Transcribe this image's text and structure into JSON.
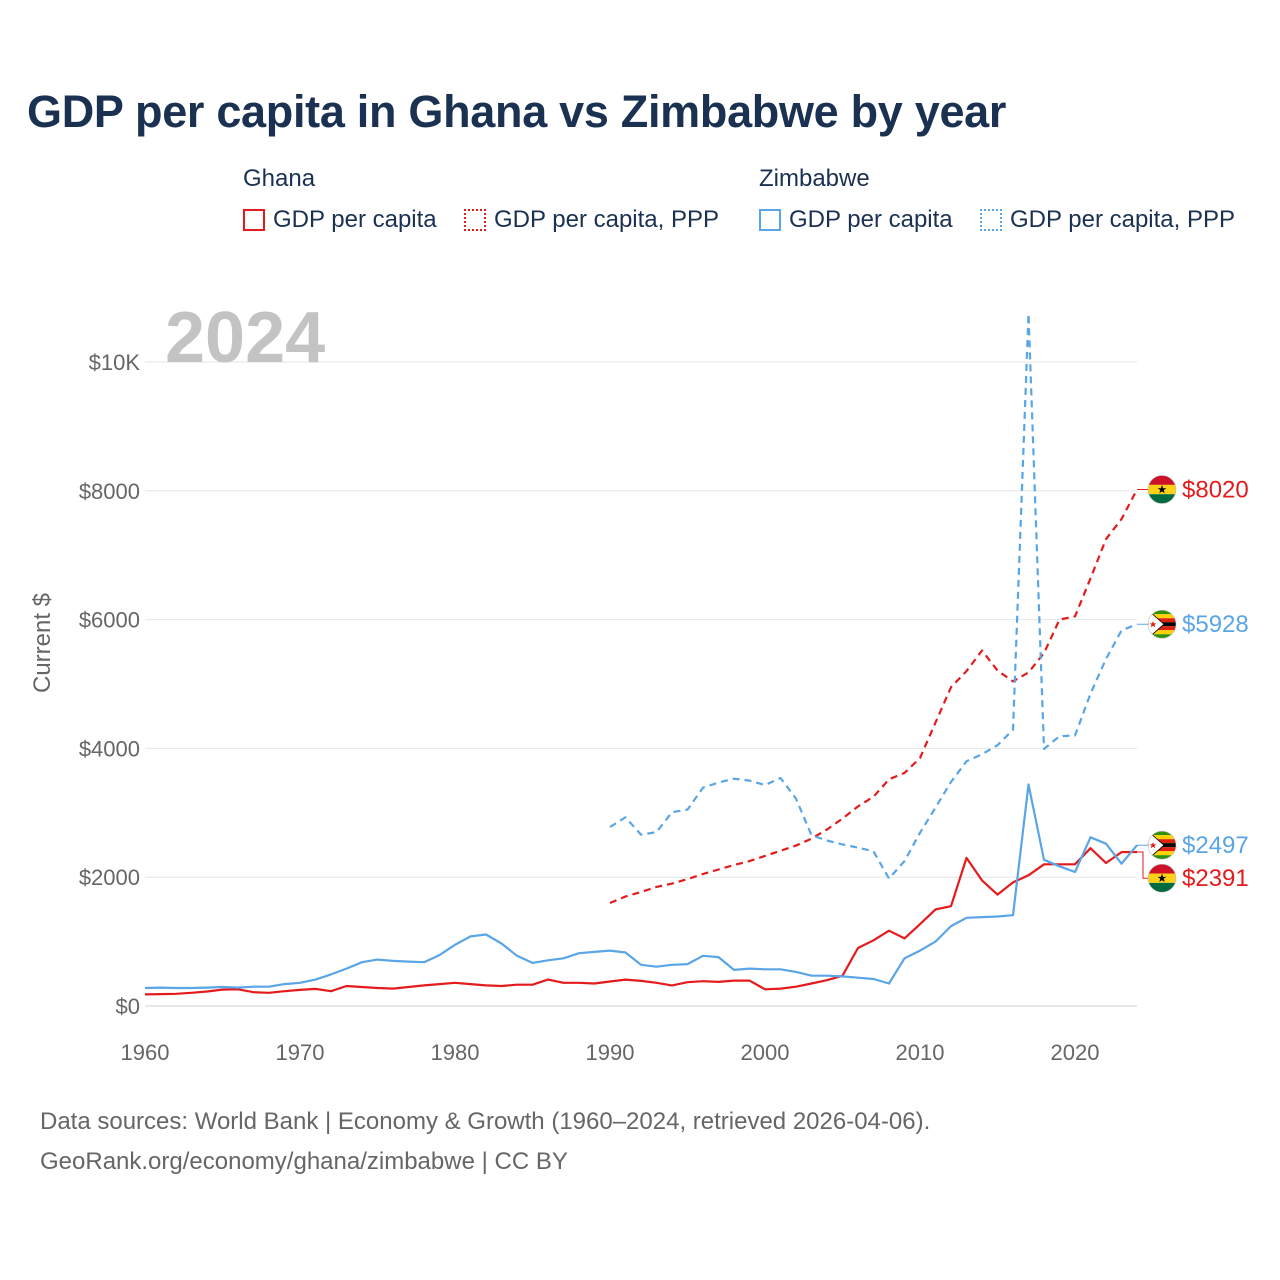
{
  "title": "GDP per capita in Ghana vs Zimbabwe by year",
  "legend": {
    "ghana": {
      "name": "Ghana",
      "gdp": "GDP per capita",
      "ppp": "GDP per capita, PPP"
    },
    "zimbabwe": {
      "name": "Zimbabwe",
      "gdp": "GDP per capita",
      "ppp": "GDP per capita, PPP"
    }
  },
  "footer": {
    "line1": "Data sources: World Bank | Economy & Growth (1960–2024, retrieved 2026-04-06).",
    "line2": "GeoRank.org/economy/ghana/zimbabwe | CC BY"
  },
  "colors": {
    "ghana": "#e41a1c",
    "zimbabwe": "#5aa5e6"
  },
  "chart_data": {
    "type": "line",
    "title": "GDP per capita in Ghana vs Zimbabwe by year",
    "year_label": "2024",
    "xlabel": "",
    "ylabel": "Current $",
    "xlim": [
      1960,
      2024
    ],
    "ylim": [
      0,
      11000
    ],
    "x_ticks": [
      1960,
      1970,
      1980,
      1990,
      2000,
      2010,
      2020
    ],
    "y_ticks": [
      {
        "value": 0,
        "label": "$0"
      },
      {
        "value": 2000,
        "label": "$2000"
      },
      {
        "value": 4000,
        "label": "$4000"
      },
      {
        "value": 6000,
        "label": "$6000"
      },
      {
        "value": 8000,
        "label": "$8000"
      },
      {
        "value": 10000,
        "label": "$10K"
      }
    ],
    "grid": true,
    "series": [
      {
        "name": "Ghana GDP per capita",
        "country": "ghana",
        "style": "solid",
        "end_label": "$2391",
        "end_value": 2391,
        "x": [
          1960,
          1961,
          1962,
          1963,
          1964,
          1965,
          1966,
          1967,
          1968,
          1969,
          1970,
          1971,
          1972,
          1973,
          1974,
          1975,
          1976,
          1977,
          1978,
          1979,
          1980,
          1981,
          1982,
          1983,
          1984,
          1985,
          1986,
          1987,
          1988,
          1989,
          1990,
          1991,
          1992,
          1993,
          1994,
          1995,
          1996,
          1997,
          1998,
          1999,
          2000,
          2001,
          2002,
          2003,
          2004,
          2005,
          2006,
          2007,
          2008,
          2009,
          2010,
          2011,
          2012,
          2013,
          2014,
          2015,
          2016,
          2017,
          2018,
          2019,
          2020,
          2021,
          2022,
          2023,
          2024
        ],
        "values": [
          180,
          185,
          190,
          205,
          225,
          255,
          260,
          215,
          205,
          230,
          250,
          265,
          230,
          310,
          295,
          280,
          270,
          295,
          320,
          340,
          360,
          340,
          320,
          310,
          330,
          330,
          410,
          360,
          360,
          350,
          380,
          410,
          390,
          360,
          320,
          370,
          385,
          375,
          395,
          395,
          260,
          270,
          300,
          350,
          400,
          470,
          900,
          1020,
          1170,
          1050,
          1270,
          1500,
          1550,
          2300,
          1950,
          1730,
          1920,
          2030,
          2200,
          2200,
          2200,
          2450,
          2220,
          2390,
          2391
        ]
      },
      {
        "name": "Ghana GDP per capita, PPP",
        "country": "ghana",
        "style": "dashed",
        "end_label": "$8020",
        "end_value": 8020,
        "x": [
          1990,
          1991,
          1992,
          1993,
          1994,
          1995,
          1996,
          1997,
          1998,
          1999,
          2000,
          2001,
          2002,
          2003,
          2004,
          2005,
          2006,
          2007,
          2008,
          2009,
          2010,
          2011,
          2012,
          2013,
          2014,
          2015,
          2016,
          2017,
          2018,
          2019,
          2020,
          2021,
          2022,
          2023,
          2024
        ],
        "values": [
          1600,
          1700,
          1770,
          1850,
          1900,
          1970,
          2050,
          2120,
          2190,
          2250,
          2330,
          2410,
          2490,
          2600,
          2740,
          2910,
          3100,
          3250,
          3520,
          3620,
          3850,
          4400,
          4950,
          5200,
          5520,
          5210,
          5040,
          5180,
          5480,
          6000,
          6050,
          6640,
          7250,
          7560,
          8020
        ]
      },
      {
        "name": "Zimbabwe GDP per capita",
        "country": "zimbabwe",
        "style": "solid",
        "end_label": "$2497",
        "end_value": 2497,
        "x": [
          1960,
          1961,
          1962,
          1963,
          1964,
          1965,
          1966,
          1967,
          1968,
          1969,
          1970,
          1971,
          1972,
          1973,
          1974,
          1975,
          1976,
          1977,
          1978,
          1979,
          1980,
          1981,
          1982,
          1983,
          1984,
          1985,
          1986,
          1987,
          1988,
          1989,
          1990,
          1991,
          1992,
          1993,
          1994,
          1995,
          1996,
          1997,
          1998,
          1999,
          2000,
          2001,
          2002,
          2003,
          2004,
          2005,
          2006,
          2007,
          2008,
          2009,
          2010,
          2011,
          2012,
          2013,
          2014,
          2015,
          2016,
          2017,
          2018,
          2019,
          2020,
          2021,
          2022,
          2023,
          2024
        ],
        "values": [
          280,
          285,
          280,
          280,
          285,
          295,
          285,
          300,
          300,
          340,
          360,
          410,
          490,
          580,
          680,
          720,
          700,
          690,
          680,
          790,
          950,
          1080,
          1110,
          970,
          780,
          670,
          710,
          740,
          820,
          840,
          860,
          830,
          640,
          610,
          640,
          650,
          780,
          760,
          560,
          580,
          570,
          570,
          530,
          470,
          470,
          460,
          440,
          420,
          350,
          740,
          860,
          1000,
          1240,
          1370,
          1380,
          1390,
          1410,
          3440,
          2270,
          2170,
          2080,
          2620,
          2520,
          2210,
          2497
        ]
      },
      {
        "name": "Zimbabwe GDP per capita, PPP",
        "country": "zimbabwe",
        "style": "dashed",
        "end_label": "$5928",
        "end_value": 5928,
        "x": [
          1990,
          1991,
          1992,
          1993,
          1994,
          1995,
          1996,
          1997,
          1998,
          1999,
          2000,
          2001,
          2002,
          2003,
          2004,
          2005,
          2006,
          2007,
          2008,
          2009,
          2010,
          2011,
          2012,
          2013,
          2014,
          2015,
          2016,
          2017,
          2018,
          2019,
          2020,
          2021,
          2022,
          2023,
          2024
        ],
        "values": [
          2780,
          2930,
          2660,
          2700,
          3010,
          3050,
          3390,
          3470,
          3530,
          3500,
          3430,
          3540,
          3220,
          2650,
          2570,
          2510,
          2460,
          2400,
          1980,
          2250,
          2690,
          3080,
          3480,
          3800,
          3910,
          4050,
          4290,
          10750,
          3990,
          4190,
          4200,
          4850,
          5390,
          5830,
          5928
        ]
      }
    ]
  }
}
